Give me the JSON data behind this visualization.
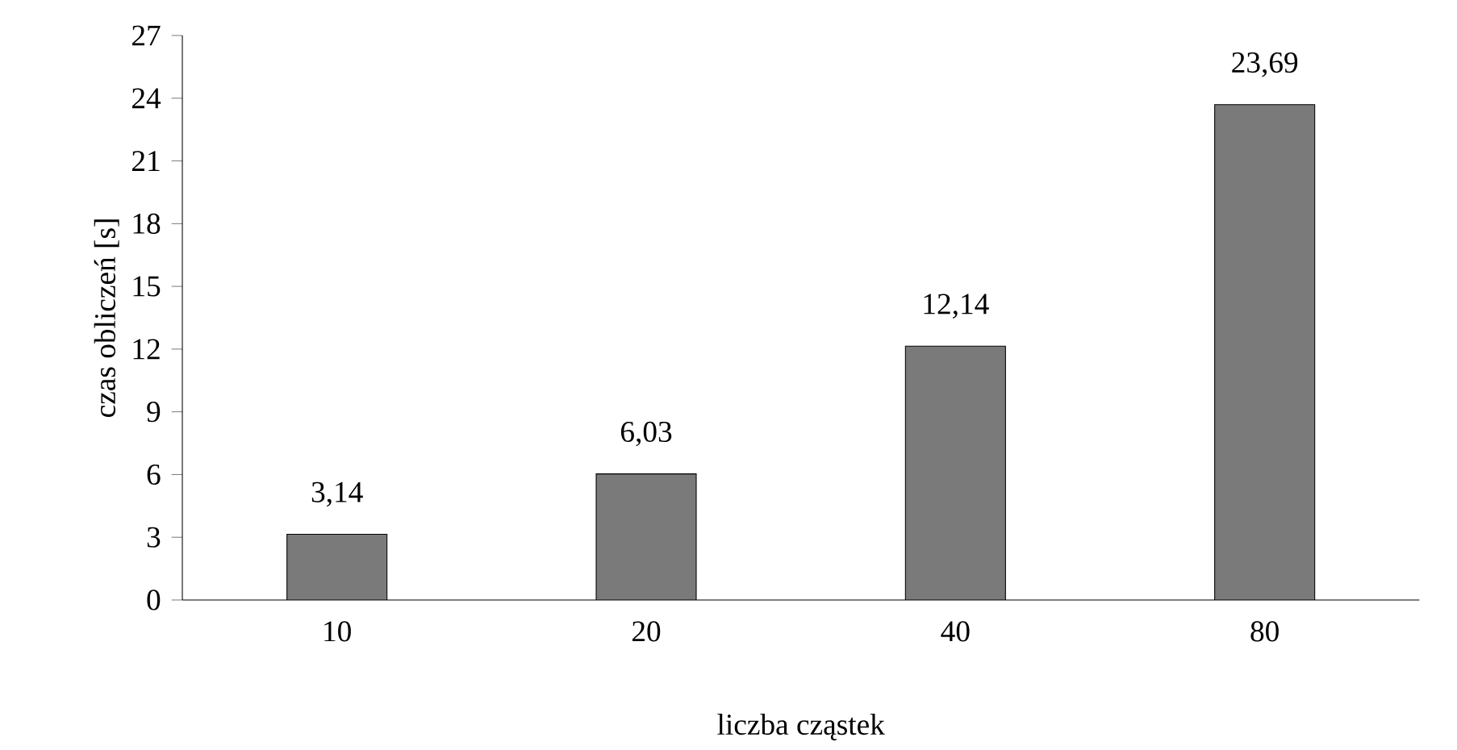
{
  "chart_data": {
    "type": "bar",
    "xlabel": "liczba cząstek",
    "ylabel": "czas obliczeń [s]",
    "categories": [
      "10",
      "20",
      "40",
      "80"
    ],
    "values": [
      3.14,
      6.03,
      12.14,
      23.69
    ],
    "value_labels": [
      "3,14",
      "6,03",
      "12,14",
      "23,69"
    ],
    "color": "#7a7a7a",
    "ylim": [
      0,
      27
    ],
    "yticks": [
      0,
      3,
      6,
      9,
      12,
      15,
      18,
      21,
      24,
      27
    ],
    "grid": false
  }
}
